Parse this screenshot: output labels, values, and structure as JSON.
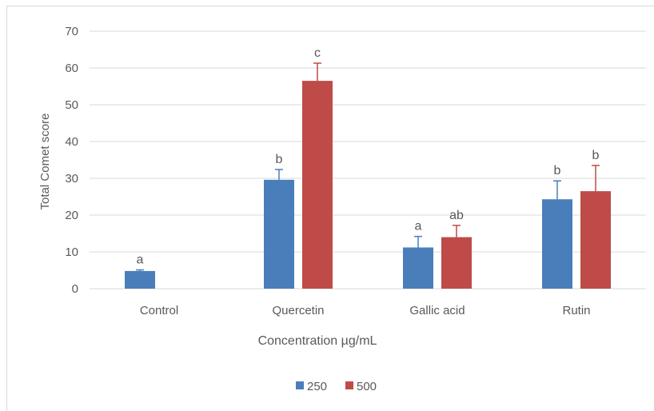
{
  "chart_data": {
    "type": "bar",
    "title": "",
    "xlabel": "Concentration µg/mL",
    "ylabel": "Total Comet score",
    "ylim": [
      0,
      70
    ],
    "yticks": [
      0,
      10,
      20,
      30,
      40,
      50,
      60,
      70
    ],
    "grid": true,
    "legend_position": "bottom",
    "categories": [
      "Control",
      "Quercetin",
      "Gallic acid",
      "Rutin"
    ],
    "series": [
      {
        "name": "250",
        "color": "#4a7ebb",
        "values": [
          4.8,
          29.6,
          11.2,
          24.3
        ],
        "errors": [
          0.3,
          2.8,
          3.0,
          5.0
        ],
        "labels": [
          "a",
          "b",
          "a",
          "b"
        ]
      },
      {
        "name": "500",
        "color": "#be4b48",
        "values": [
          null,
          56.5,
          14.0,
          26.5
        ],
        "errors": [
          null,
          4.8,
          3.2,
          7.0
        ],
        "labels": [
          null,
          "c",
          "ab",
          "b"
        ]
      }
    ]
  }
}
